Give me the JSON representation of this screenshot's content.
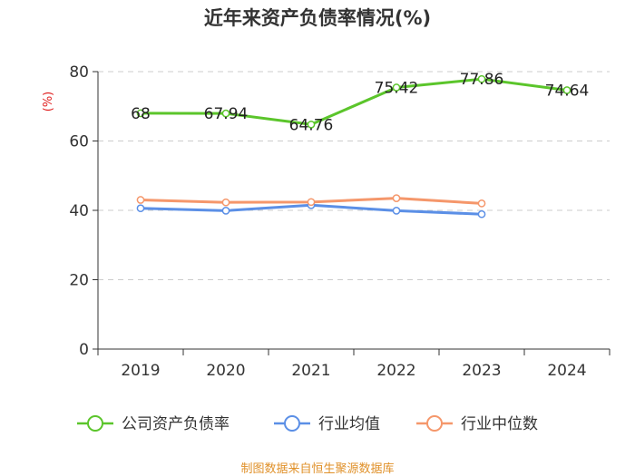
{
  "chart_data": {
    "type": "line",
    "title": "近年来资产负债率情况(%)",
    "ylabel": "(%)",
    "xlabel": "",
    "ylim": [
      0,
      80
    ],
    "yticks": [
      0,
      20,
      40,
      60,
      80
    ],
    "categories": [
      "2019",
      "2020",
      "2021",
      "2022",
      "2023",
      "2024"
    ],
    "grid": true,
    "legend_position": "bottom",
    "series": [
      {
        "name": "公司资产负债率",
        "color": "#5bc52b",
        "values": [
          68,
          67.94,
          64.76,
          75.42,
          77.86,
          74.64
        ],
        "labels": [
          "68",
          "67.94",
          "64.76",
          "75.42",
          "77.86",
          "74.64"
        ]
      },
      {
        "name": "行业均值",
        "color": "#5b8fe6",
        "values": [
          40.6,
          39.9,
          41.5,
          39.9,
          38.9,
          null
        ],
        "labels": []
      },
      {
        "name": "行业中位数",
        "color": "#f5976b",
        "values": [
          43.0,
          42.3,
          42.4,
          43.5,
          42.0,
          null
        ],
        "labels": []
      }
    ],
    "source": "制图数据来自恒生聚源数据库"
  },
  "colors": {
    "unit_label": "#e02020",
    "source_text": "#e0912a",
    "axis": "#333333",
    "grid": "#cccccc"
  }
}
